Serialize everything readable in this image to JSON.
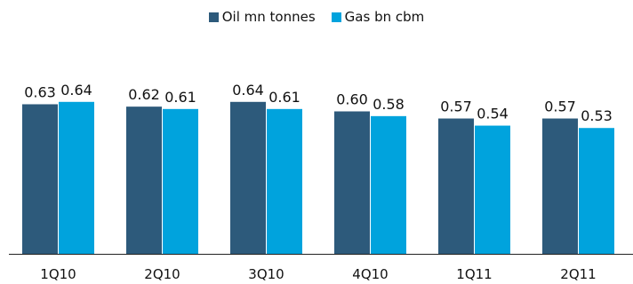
{
  "chart_data": {
    "type": "bar",
    "categories": [
      "1Q10",
      "2Q10",
      "3Q10",
      "4Q10",
      "1Q11",
      "2Q11"
    ],
    "series": [
      {
        "name": "Oil mn tonnes",
        "color": "#2d5a7b",
        "values": [
          0.63,
          0.62,
          0.64,
          0.6,
          0.57,
          0.57
        ]
      },
      {
        "name": "Gas bn cbm",
        "color": "#00a3dd",
        "values": [
          0.64,
          0.61,
          0.61,
          0.58,
          0.54,
          0.53
        ]
      }
    ],
    "value_labels": [
      [
        "0.63",
        "0.62",
        "0.64",
        "0.60",
        "0.57",
        "0.57"
      ],
      [
        "0.64",
        "0.61",
        "0.61",
        "0.58",
        "0.54",
        "0.53"
      ]
    ],
    "ylim": [
      0,
      0.8
    ],
    "grid": false,
    "legend_position": "top-center",
    "title": "",
    "xlabel": "",
    "ylabel": ""
  }
}
